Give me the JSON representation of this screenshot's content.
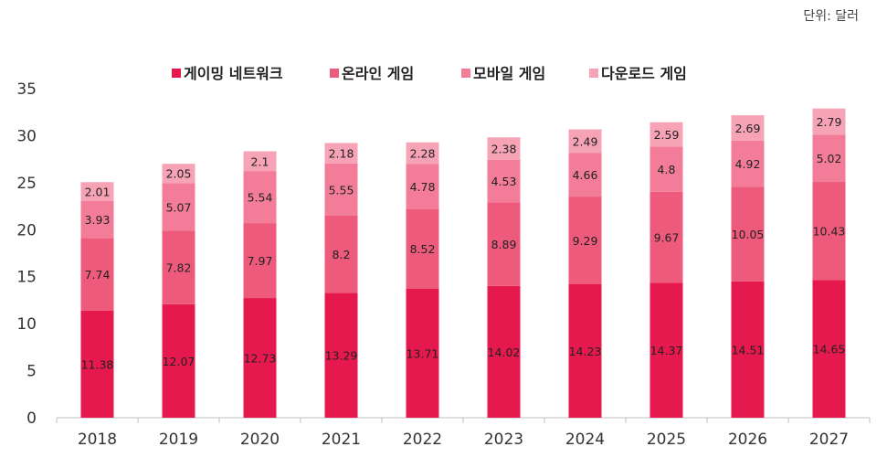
{
  "unit_label": "단위: 달러",
  "chart_data": {
    "type": "bar",
    "stacked": true,
    "categories": [
      "2018",
      "2019",
      "2020",
      "2021",
      "2022",
      "2023",
      "2024",
      "2025",
      "2026",
      "2027"
    ],
    "series": [
      {
        "name": "게이밍 네트워크",
        "color": "#e5194d",
        "values": [
          11.38,
          12.07,
          12.73,
          13.29,
          13.71,
          14.02,
          14.23,
          14.37,
          14.51,
          14.65
        ]
      },
      {
        "name": "온라인 게임",
        "color": "#ee5a7c",
        "values": [
          7.74,
          7.82,
          7.97,
          8.2,
          8.52,
          8.89,
          9.29,
          9.67,
          10.05,
          10.43
        ]
      },
      {
        "name": "모바일 게임",
        "color": "#f37d98",
        "values": [
          3.93,
          5.07,
          5.54,
          5.55,
          4.78,
          4.53,
          4.66,
          4.8,
          4.92,
          5.02
        ]
      },
      {
        "name": "다운로드 게임",
        "color": "#f7a3b6",
        "values": [
          2.01,
          2.05,
          2.1,
          2.18,
          2.28,
          2.38,
          2.49,
          2.59,
          2.69,
          2.79
        ]
      }
    ],
    "value_labels": [
      [
        "11.38",
        "12.07",
        "12.73",
        "13.29",
        "13.71",
        "14.02",
        "14.23",
        "14.37",
        "14.51",
        "14.65"
      ],
      [
        "7.74",
        "7.82",
        "7.97",
        "8.2",
        "8.52",
        "8.89",
        "9.29",
        "9.67",
        "10.05",
        "10.43"
      ],
      [
        "3.93",
        "5.07",
        "5.54",
        "5.55",
        "4.78",
        "4.53",
        "4.66",
        "4.8",
        "4.92",
        "5.02"
      ],
      [
        "2.01",
        "2.05",
        "2.1",
        "2.18",
        "2.28",
        "2.38",
        "2.49",
        "2.59",
        "2.69",
        "2.79"
      ]
    ],
    "ylim": [
      0,
      35
    ],
    "yticks": [
      "0",
      "5",
      "10",
      "15",
      "20",
      "25",
      "30",
      "35"
    ],
    "grid": false,
    "legend_position": "top-center"
  }
}
